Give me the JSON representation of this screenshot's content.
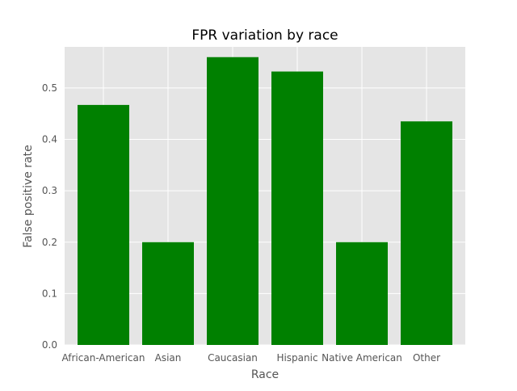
{
  "chart_data": {
    "type": "bar",
    "title": "FPR variation by race",
    "xlabel": "Race",
    "ylabel": "False positive rate",
    "categories": [
      "African-American",
      "Asian",
      "Caucasian",
      "Hispanic",
      "Native American",
      "Other"
    ],
    "values": [
      0.467,
      0.2,
      0.56,
      0.532,
      0.2,
      0.435
    ],
    "ylim": [
      0,
      0.58
    ],
    "yticks": [
      "0.0",
      "0.1",
      "0.2",
      "0.3",
      "0.4",
      "0.5"
    ],
    "grid": true,
    "legend": "none",
    "colors": {
      "bar": "#008000",
      "plot_background": "#e5e5e5",
      "grid": "#ffffff"
    }
  }
}
